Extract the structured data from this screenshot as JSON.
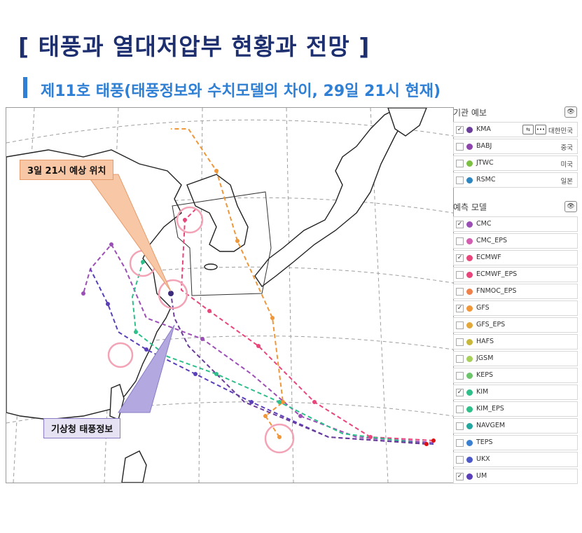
{
  "header": {
    "title": "[ 태풍과 열대저압부 현황과 전망 ]",
    "subtitle": "제11호 태풍(태풍정보와 수치모델의 차이, 29일 21시 현재)"
  },
  "map": {
    "callouts": {
      "forecast_position": "3일 21시 예상 위치",
      "kma_info": "기상청 태풍정보"
    }
  },
  "panel": {
    "agencies_title": "기관 예보",
    "agencies": [
      {
        "name": "KMA",
        "country": "대한민국",
        "checked": true,
        "color": "#6a3d9a"
      },
      {
        "name": "BABJ",
        "country": "중국",
        "checked": false,
        "color": "#8e44ad"
      },
      {
        "name": "JTWC",
        "country": "미국",
        "checked": false,
        "color": "#7bc043"
      },
      {
        "name": "RSMC",
        "country": "일본",
        "checked": false,
        "color": "#2e86c1"
      }
    ],
    "models_title": "예측 모델",
    "models": [
      {
        "name": "CMC",
        "checked": true,
        "color": "#9b4fb5"
      },
      {
        "name": "CMC_EPS",
        "checked": false,
        "color": "#d35db0"
      },
      {
        "name": "ECMWF",
        "checked": true,
        "color": "#e8457a"
      },
      {
        "name": "ECMWF_EPS",
        "checked": false,
        "color": "#e8457a"
      },
      {
        "name": "FNMOC_EPS",
        "checked": false,
        "color": "#f0814d"
      },
      {
        "name": "GFS",
        "checked": true,
        "color": "#f0973a"
      },
      {
        "name": "GFS_EPS",
        "checked": false,
        "color": "#e3a83a"
      },
      {
        "name": "HAFS",
        "checked": false,
        "color": "#c9b73a"
      },
      {
        "name": "JGSM",
        "checked": false,
        "color": "#a6d05a"
      },
      {
        "name": "KEPS",
        "checked": false,
        "color": "#6cc46b"
      },
      {
        "name": "KIM",
        "checked": true,
        "color": "#2fbf8a"
      },
      {
        "name": "KIM_EPS",
        "checked": false,
        "color": "#2fbf8a"
      },
      {
        "name": "NAVGEM",
        "checked": false,
        "color": "#22a6a0"
      },
      {
        "name": "TEPS",
        "checked": false,
        "color": "#3b7fd0"
      },
      {
        "name": "UKX",
        "checked": false,
        "color": "#4a58c8"
      },
      {
        "name": "UM",
        "checked": true,
        "color": "#5a3fb8"
      }
    ],
    "checkmark": "✓",
    "eye_icon": "👁"
  }
}
